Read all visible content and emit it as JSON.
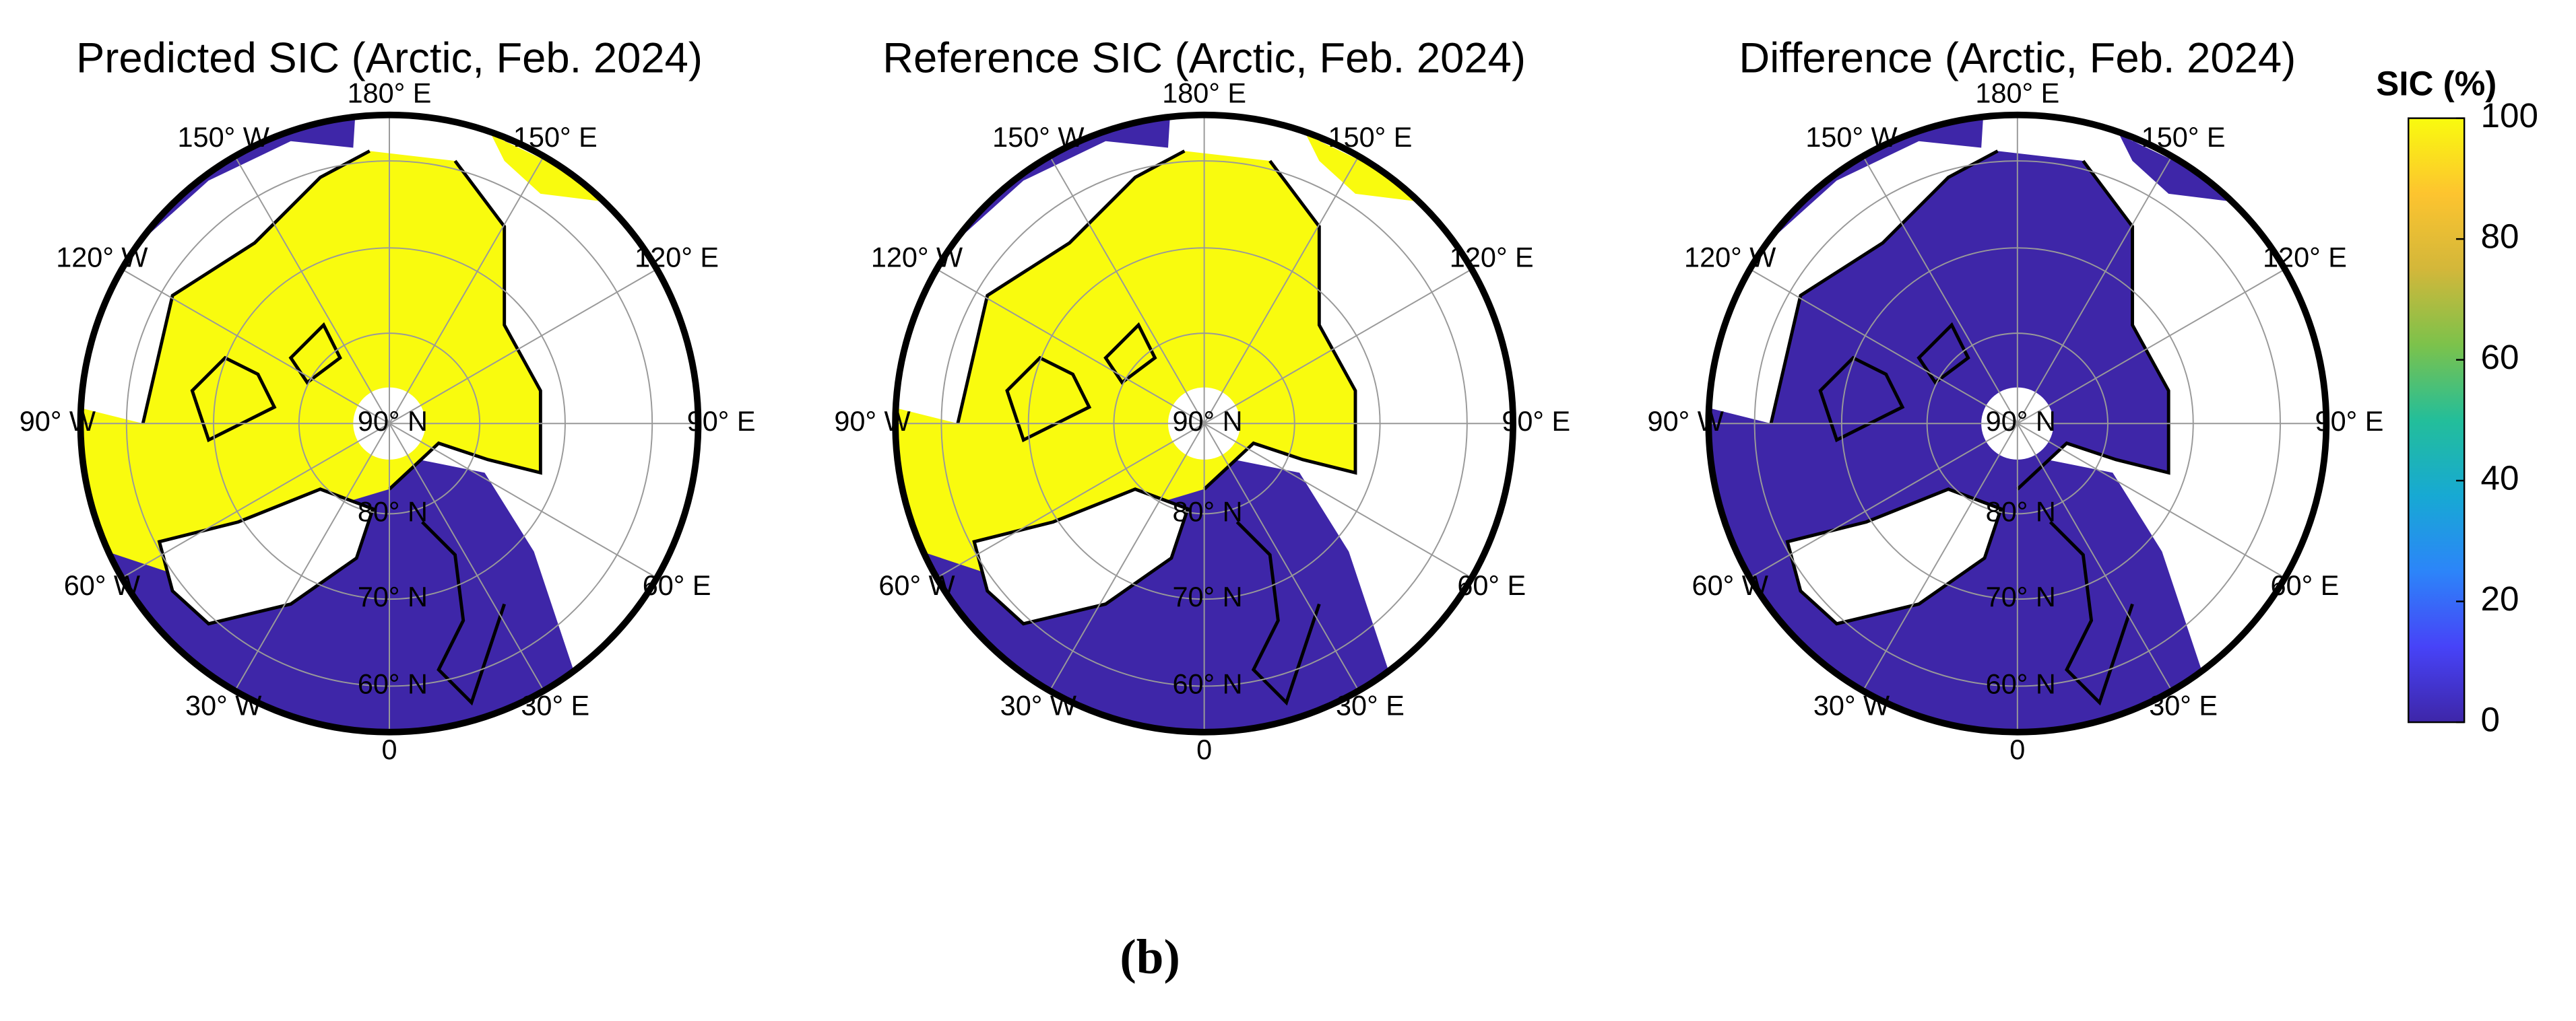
{
  "panels": [
    {
      "title": "Predicted SIC (Arctic, Feb. 2024)"
    },
    {
      "title": "Reference SIC (Arctic, Feb. 2024)"
    },
    {
      "title": "Difference (Arctic, Feb. 2024)"
    }
  ],
  "longitude_labels": [
    "0",
    "30° E",
    "60° E",
    "90° E",
    "120° E",
    "150° E",
    "180° E",
    "150° W",
    "120° W",
    "90° W",
    "60° W",
    "30° W"
  ],
  "latitude_labels": [
    "90° N",
    "80° N",
    "70° N",
    "60° N"
  ],
  "colorbar": {
    "title": "SIC (%)",
    "lim": [
      0,
      100
    ],
    "ticks": [
      0,
      20,
      40,
      60,
      80,
      100
    ],
    "colors": [
      "#3e26a8",
      "#4743f8",
      "#2c85f9",
      "#17a9d3",
      "#23be9a",
      "#7cc24b",
      "#d3b73a",
      "#fdc42f",
      "#f9fb0e"
    ]
  },
  "caption": "(b)"
}
